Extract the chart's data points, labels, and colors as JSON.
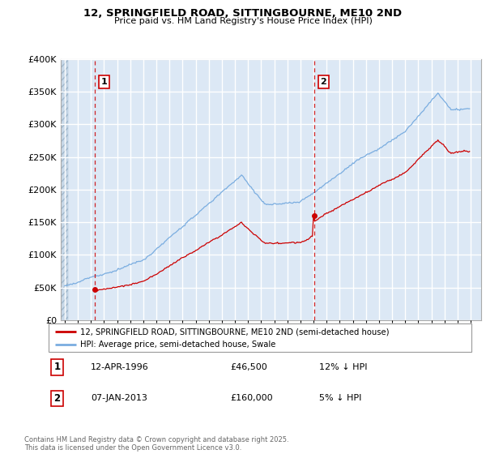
{
  "title1": "12, SPRINGFIELD ROAD, SITTINGBOURNE, ME10 2ND",
  "title2": "Price paid vs. HM Land Registry's House Price Index (HPI)",
  "ylim": [
    0,
    400000
  ],
  "yticks": [
    0,
    50000,
    100000,
    150000,
    200000,
    250000,
    300000,
    350000,
    400000
  ],
  "ytick_labels": [
    "£0",
    "£50K",
    "£100K",
    "£150K",
    "£200K",
    "£250K",
    "£300K",
    "£350K",
    "£400K"
  ],
  "xlim_start": 1993.7,
  "xlim_end": 2025.8,
  "property_color": "#cc0000",
  "hpi_color": "#7aade0",
  "legend_label_property": "12, SPRINGFIELD ROAD, SITTINGBOURNE, ME10 2ND (semi-detached house)",
  "legend_label_hpi": "HPI: Average price, semi-detached house, Swale",
  "transaction1_date": 1996.28,
  "transaction1_price": 46500,
  "transaction1_label": "1",
  "transaction2_date": 2013.03,
  "transaction2_price": 160000,
  "transaction2_label": "2",
  "annotation1": "12-APR-1996",
  "annotation1_price": "£46,500",
  "annotation1_hpi": "12% ↓ HPI",
  "annotation2": "07-JAN-2013",
  "annotation2_price": "£160,000",
  "annotation2_hpi": "5% ↓ HPI",
  "footer": "Contains HM Land Registry data © Crown copyright and database right 2025.\nThis data is licensed under the Open Government Licence v3.0.",
  "plot_bg": "#dce8f5",
  "hatch_end": 1994.25
}
